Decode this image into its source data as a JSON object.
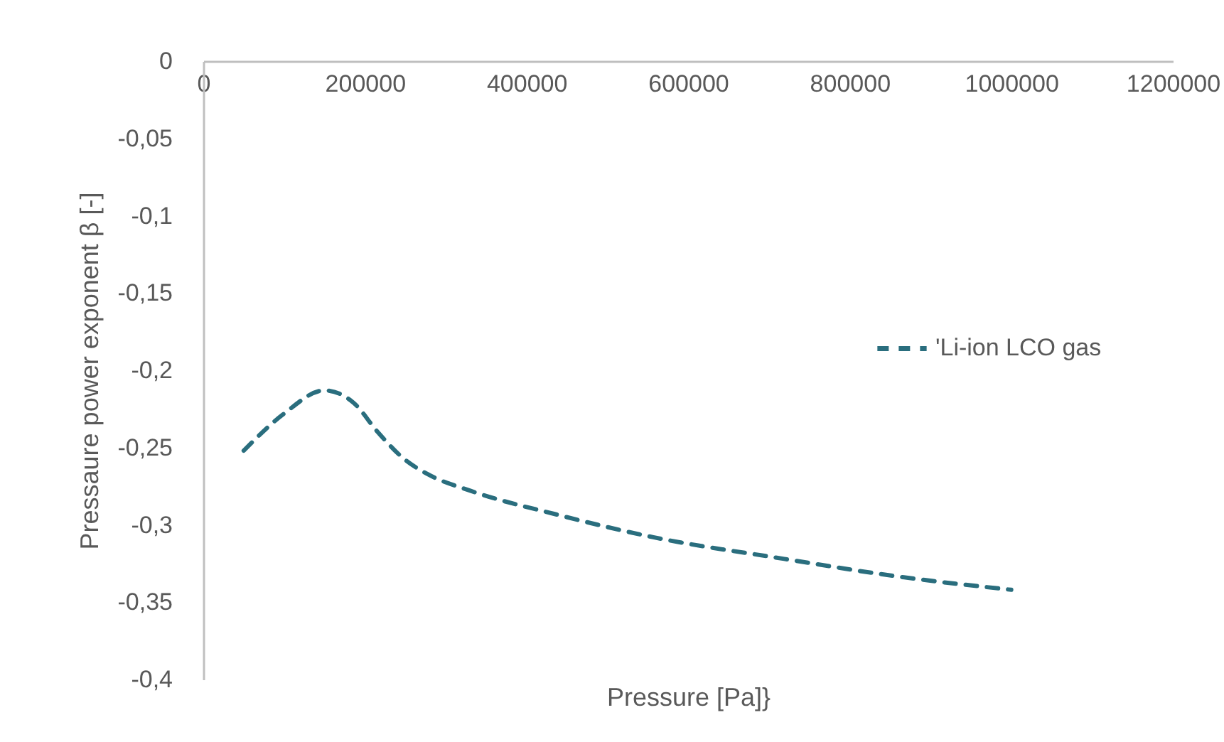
{
  "chart_data": {
    "type": "line",
    "xlabel": "Pressure [Pa]}",
    "ylabel": "Pressaure power exponent β [-]",
    "x": [
      50000,
      100000,
      150000,
      186000,
      216000,
      250000,
      277000,
      331000,
      435000,
      557000,
      719000,
      854000,
      1000000
    ],
    "series": [
      {
        "name": "'Li-ion LCO gas",
        "color": "#2a6e7e",
        "values": [
          -0.252,
          -0.228,
          -0.213,
          -0.221,
          -0.24,
          -0.258,
          -0.267,
          -0.278,
          -0.293,
          -0.308,
          -0.322,
          -0.333,
          -0.342
        ]
      }
    ],
    "xlim": [
      0,
      1200000
    ],
    "xticks": [
      0,
      200000,
      400000,
      600000,
      800000,
      1000000,
      1200000
    ],
    "ylim": [
      -0.4,
      0
    ],
    "yticks": [
      {
        "value": 0,
        "label": "0"
      },
      {
        "value": -0.05,
        "label": "-0,05"
      },
      {
        "value": -0.1,
        "label": "-0,1"
      },
      {
        "value": -0.15,
        "label": "-0,15"
      },
      {
        "value": -0.2,
        "label": "-0,2"
      },
      {
        "value": -0.25,
        "label": "-0,25"
      },
      {
        "value": -0.3,
        "label": "-0,3"
      },
      {
        "value": -0.35,
        "label": "-0,35"
      },
      {
        "value": -0.4,
        "label": "-0,4"
      }
    ],
    "grid": false,
    "legend": "right",
    "line_style": "dashed",
    "marker": "none"
  }
}
